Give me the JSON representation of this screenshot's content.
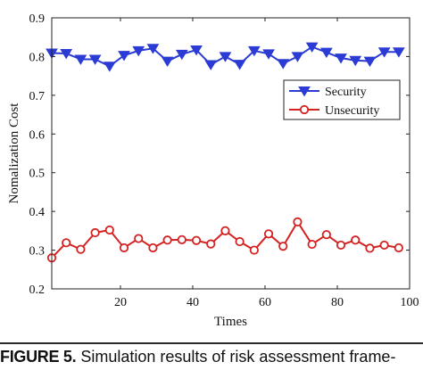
{
  "caption": {
    "label": "FIGURE 5.",
    "text": " Simulation results of risk assessment frame-"
  },
  "chart_data": {
    "type": "line",
    "xlabel": "Times",
    "ylabel": "Nomalization Cost",
    "xlim": [
      1,
      100
    ],
    "ylim": [
      0.2,
      0.9
    ],
    "xticks": [
      20,
      40,
      60,
      80,
      100
    ],
    "yticks": [
      0.2,
      0.3,
      0.4,
      0.5,
      0.6,
      0.7,
      0.8,
      0.9
    ],
    "grid": false,
    "legend": "right",
    "x": [
      1,
      5,
      9,
      13,
      17,
      21,
      25,
      29,
      33,
      37,
      41,
      45,
      49,
      53,
      57,
      61,
      65,
      69,
      73,
      77,
      81,
      85,
      89,
      93,
      97
    ],
    "series": [
      {
        "name": "Security",
        "color": "#2b3bd4",
        "marker": "triangle-down",
        "values": [
          0.809,
          0.808,
          0.793,
          0.793,
          0.775,
          0.803,
          0.815,
          0.821,
          0.788,
          0.806,
          0.817,
          0.779,
          0.8,
          0.78,
          0.815,
          0.807,
          0.782,
          0.8,
          0.825,
          0.811,
          0.796,
          0.79,
          0.788,
          0.812,
          0.812
        ]
      },
      {
        "name": "Unsecurity",
        "color": "#d42222",
        "marker": "circle",
        "values": [
          0.28,
          0.319,
          0.302,
          0.345,
          0.352,
          0.306,
          0.33,
          0.306,
          0.326,
          0.327,
          0.325,
          0.316,
          0.35,
          0.322,
          0.3,
          0.342,
          0.31,
          0.373,
          0.315,
          0.34,
          0.313,
          0.326,
          0.305,
          0.313,
          0.306
        ]
      }
    ]
  }
}
